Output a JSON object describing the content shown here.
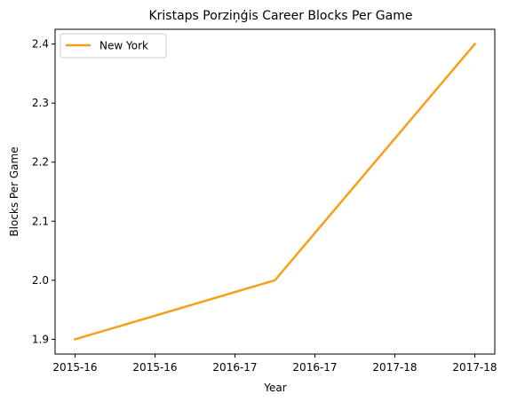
{
  "chart_data": {
    "type": "line",
    "title": "Kristaps Porziņģis Career Blocks Per Game",
    "xlabel": "Year",
    "ylabel": "Blocks Per Game",
    "x_tick_labels": [
      "2015-16",
      "2015-16",
      "2016-17",
      "2016-17",
      "2017-18",
      "2017-18"
    ],
    "x_tick_positions": [
      0,
      1,
      2,
      3,
      4,
      5
    ],
    "xlim": [
      -0.25,
      5.25
    ],
    "y_ticks": [
      1.9,
      2.0,
      2.1,
      2.2,
      2.3,
      2.4
    ],
    "y_tick_labels": [
      "1.9",
      "2.0",
      "2.1",
      "2.2",
      "2.3",
      "2.4"
    ],
    "ylim": [
      1.875,
      2.425
    ],
    "series": [
      {
        "name": "New York",
        "color": "#f5a01a",
        "x": [
          0,
          2.5,
          5
        ],
        "y": [
          1.9,
          2.0,
          2.4
        ]
      }
    ],
    "legend": {
      "position": "top-left",
      "entries": [
        "New York"
      ]
    },
    "grid": false
  }
}
